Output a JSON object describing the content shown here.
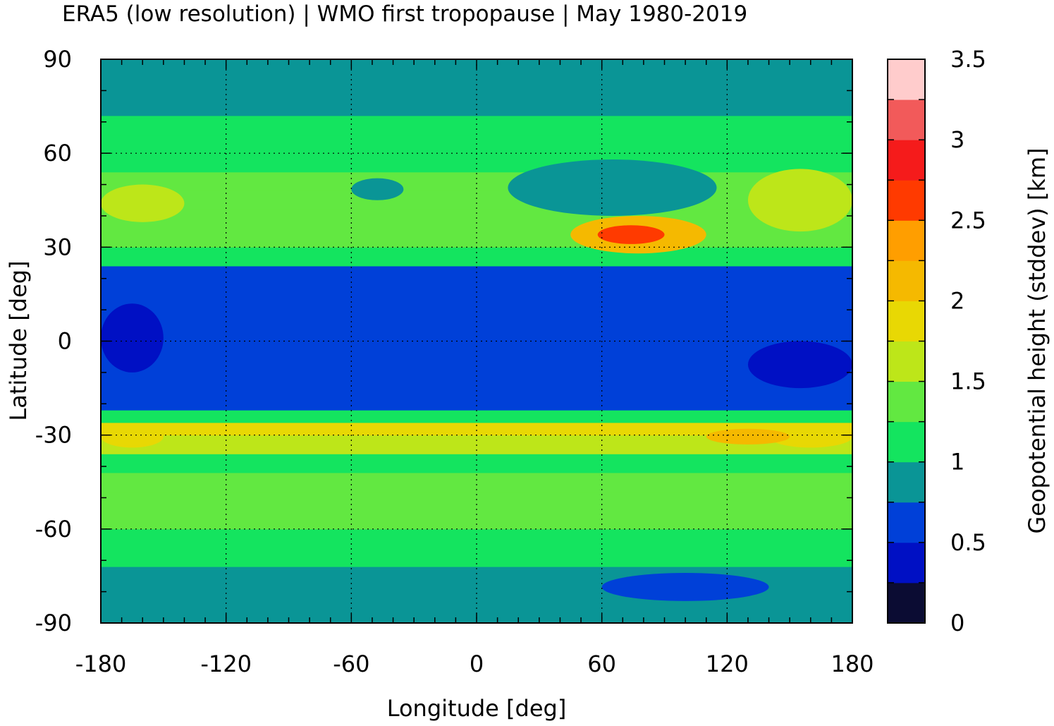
{
  "chart_data": {
    "type": "heatmap",
    "title": "ERA5 (low resolution) | WMO first tropopause | May 1980-2019",
    "xlabel": "Longitude [deg]",
    "ylabel": "Latitude [deg]",
    "colorbar_label": "Geopotential height (stddev) [km]",
    "xlim": [
      -180,
      180
    ],
    "ylim": [
      -90,
      90
    ],
    "x_ticks": [
      "-180",
      "-120",
      "-60",
      "0",
      "60",
      "120",
      "180"
    ],
    "y_ticks": [
      "90",
      "60",
      "30",
      "0",
      "-30",
      "-60",
      "-90"
    ],
    "colorbar_ticks": [
      "3.5",
      "3",
      "2.5",
      "2",
      "1.5",
      "1",
      "0.5",
      "0"
    ],
    "colorbar_range": [
      0,
      3.5
    ],
    "grid": true,
    "colorbar_levels": [
      {
        "from": 0.0,
        "to": 0.25,
        "color": "#0b0c33"
      },
      {
        "from": 0.25,
        "to": 0.5,
        "color": "#0010c4"
      },
      {
        "from": 0.5,
        "to": 0.75,
        "color": "#0040d8"
      },
      {
        "from": 0.75,
        "to": 1.0,
        "color": "#0a9596"
      },
      {
        "from": 1.0,
        "to": 1.25,
        "color": "#14e45f"
      },
      {
        "from": 1.25,
        "to": 1.5,
        "color": "#62e841"
      },
      {
        "from": 1.5,
        "to": 1.75,
        "color": "#bde619"
      },
      {
        "from": 1.75,
        "to": 2.0,
        "color": "#e8d804"
      },
      {
        "from": 2.0,
        "to": 2.25,
        "color": "#f5b900"
      },
      {
        "from": 2.25,
        "to": 2.5,
        "color": "#ff9e00"
      },
      {
        "from": 2.5,
        "to": 2.75,
        "color": "#ff3a00"
      },
      {
        "from": 2.75,
        "to": 3.0,
        "color": "#f51b1b"
      },
      {
        "from": 3.0,
        "to": 3.25,
        "color": "#f25a5a"
      },
      {
        "from": 3.25,
        "to": 3.5,
        "color": "#ffcccc"
      }
    ],
    "zonal_profile": [
      {
        "lat": -90,
        "value": 0.9
      },
      {
        "lat": -84,
        "value": 0.9
      },
      {
        "lat": -78,
        "value": 0.95
      },
      {
        "lat": -72,
        "value": 1.1
      },
      {
        "lat": -66,
        "value": 1.2
      },
      {
        "lat": -60,
        "value": 1.3
      },
      {
        "lat": -54,
        "value": 1.35
      },
      {
        "lat": -48,
        "value": 1.3
      },
      {
        "lat": -42,
        "value": 1.2
      },
      {
        "lat": -36,
        "value": 1.5
      },
      {
        "lat": -30,
        "value": 1.8
      },
      {
        "lat": -26,
        "value": 1.1
      },
      {
        "lat": -22,
        "value": 0.7
      },
      {
        "lat": -16,
        "value": 0.6
      },
      {
        "lat": -8,
        "value": 0.55
      },
      {
        "lat": 0,
        "value": 0.5
      },
      {
        "lat": 8,
        "value": 0.55
      },
      {
        "lat": 14,
        "value": 0.6
      },
      {
        "lat": 20,
        "value": 0.7
      },
      {
        "lat": 24,
        "value": 1.1
      },
      {
        "lat": 30,
        "value": 1.4
      },
      {
        "lat": 36,
        "value": 1.3
      },
      {
        "lat": 42,
        "value": 1.4
      },
      {
        "lat": 48,
        "value": 1.3
      },
      {
        "lat": 54,
        "value": 1.2
      },
      {
        "lat": 60,
        "value": 1.1
      },
      {
        "lat": 66,
        "value": 1.1
      },
      {
        "lat": 72,
        "value": 0.9
      },
      {
        "lat": 80,
        "value": 0.9
      },
      {
        "lat": 90,
        "value": 0.9
      }
    ],
    "regions": [
      {
        "value": 2.6,
        "lon": [
          58,
          90
        ],
        "lat": [
          31,
          37
        ]
      },
      {
        "value": 2.2,
        "lon": [
          45,
          110
        ],
        "lat": [
          28,
          40
        ]
      },
      {
        "value": 1.8,
        "lon": [
          140,
          180
        ],
        "lat": [
          -34,
          -27
        ]
      },
      {
        "value": 1.8,
        "lon": [
          -180,
          -150
        ],
        "lat": [
          -34,
          -27
        ]
      },
      {
        "value": 2.0,
        "lon": [
          110,
          150
        ],
        "lat": [
          -33,
          -28
        ]
      },
      {
        "value": 0.85,
        "lon": [
          15,
          115
        ],
        "lat": [
          40,
          58
        ]
      },
      {
        "value": 0.85,
        "lon": [
          -60,
          -35
        ],
        "lat": [
          45,
          52
        ]
      },
      {
        "value": 0.6,
        "lon": [
          60,
          140
        ],
        "lat": [
          -83,
          -74
        ]
      },
      {
        "value": 0.4,
        "lon": [
          -180,
          -150
        ],
        "lat": [
          -10,
          12
        ]
      },
      {
        "value": 0.4,
        "lon": [
          130,
          180
        ],
        "lat": [
          -15,
          0
        ]
      },
      {
        "value": 1.6,
        "lon": [
          -180,
          -140
        ],
        "lat": [
          38,
          50
        ]
      },
      {
        "value": 1.6,
        "lon": [
          130,
          180
        ],
        "lat": [
          35,
          55
        ]
      }
    ]
  }
}
